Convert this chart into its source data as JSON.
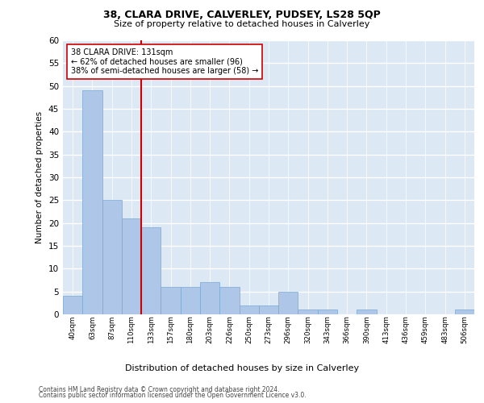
{
  "title": "38, CLARA DRIVE, CALVERLEY, PUDSEY, LS28 5QP",
  "subtitle": "Size of property relative to detached houses in Calverley",
  "xlabel": "Distribution of detached houses by size in Calverley",
  "ylabel": "Number of detached properties",
  "categories": [
    "40sqm",
    "63sqm",
    "87sqm",
    "110sqm",
    "133sqm",
    "157sqm",
    "180sqm",
    "203sqm",
    "226sqm",
    "250sqm",
    "273sqm",
    "296sqm",
    "320sqm",
    "343sqm",
    "366sqm",
    "390sqm",
    "413sqm",
    "436sqm",
    "459sqm",
    "483sqm",
    "506sqm"
  ],
  "values": [
    4,
    49,
    25,
    21,
    19,
    6,
    6,
    7,
    6,
    2,
    2,
    5,
    1,
    1,
    0,
    1,
    0,
    0,
    0,
    0,
    1
  ],
  "bar_color": "#aec6e8",
  "bar_edge_color": "#7aa8d2",
  "vline_x_index": 4,
  "vline_color": "#cc0000",
  "annotation_text": "38 CLARA DRIVE: 131sqm\n← 62% of detached houses are smaller (96)\n38% of semi-detached houses are larger (58) →",
  "annotation_box_color": "#ffffff",
  "annotation_box_edge_color": "#cc0000",
  "ylim": [
    0,
    60
  ],
  "yticks": [
    0,
    5,
    10,
    15,
    20,
    25,
    30,
    35,
    40,
    45,
    50,
    55,
    60
  ],
  "background_color": "#dde8f5",
  "grid_color": "#ffffff",
  "footer_line1": "Contains HM Land Registry data © Crown copyright and database right 2024.",
  "footer_line2": "Contains public sector information licensed under the Open Government Licence v3.0."
}
